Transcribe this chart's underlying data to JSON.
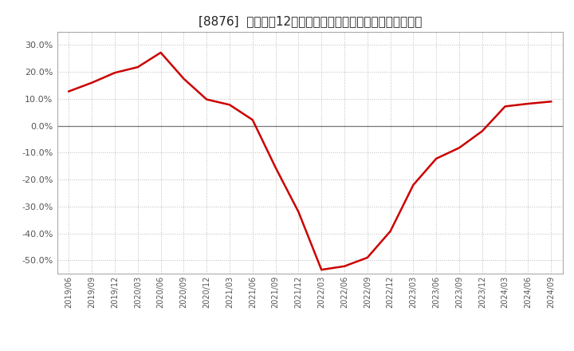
{
  "title": "[8876]  売上高の12か月移動合計の対前年同期増減率の推移",
  "line_color": "#cc0000",
  "background_color": "#ffffff",
  "plot_bg_color": "#ffffff",
  "grid_color": "#bbbbbb",
  "ylim": [
    -0.55,
    0.35
  ],
  "yticks": [
    -0.5,
    -0.4,
    -0.3,
    -0.2,
    -0.1,
    0.0,
    0.1,
    0.2,
    0.3
  ],
  "x_labels": [
    "2019/06",
    "2019/09",
    "2019/12",
    "2020/03",
    "2020/06",
    "2020/09",
    "2020/12",
    "2021/03",
    "2021/06",
    "2021/09",
    "2021/12",
    "2022/03",
    "2022/06",
    "2022/09",
    "2022/12",
    "2023/03",
    "2023/06",
    "2023/09",
    "2023/12",
    "2024/03",
    "2024/06",
    "2024/09"
  ],
  "data": [
    [
      "2019/06",
      0.128
    ],
    [
      "2019/09",
      0.16
    ],
    [
      "2019/12",
      0.197
    ],
    [
      "2020/03",
      0.218
    ],
    [
      "2020/06",
      0.272
    ],
    [
      "2020/09",
      0.175
    ],
    [
      "2020/12",
      0.098
    ],
    [
      "2021/03",
      0.078
    ],
    [
      "2021/06",
      0.022
    ],
    [
      "2021/09",
      -0.155
    ],
    [
      "2021/12",
      -0.32
    ],
    [
      "2022/03",
      -0.535
    ],
    [
      "2022/06",
      -0.522
    ],
    [
      "2022/09",
      -0.49
    ],
    [
      "2022/12",
      -0.392
    ],
    [
      "2023/03",
      -0.22
    ],
    [
      "2023/06",
      -0.122
    ],
    [
      "2023/09",
      -0.082
    ],
    [
      "2023/12",
      -0.02
    ],
    [
      "2024/03",
      0.072
    ],
    [
      "2024/06",
      0.082
    ],
    [
      "2024/09",
      0.09
    ]
  ]
}
